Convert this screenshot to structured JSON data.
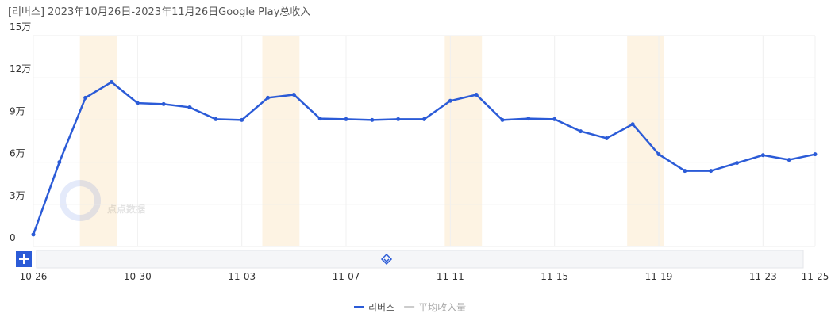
{
  "chart_data": {
    "type": "line",
    "title": "[리버스]  2023年10月26日-2023年11月26日Google Play总收入",
    "watermark": "点点数据",
    "categories": [
      "10-26",
      null,
      null,
      null,
      "10-30",
      null,
      null,
      null,
      "11-03",
      null,
      null,
      null,
      "11-07",
      null,
      null,
      null,
      "11-11",
      null,
      null,
      null,
      "11-15",
      null,
      null,
      null,
      "11-19",
      null,
      null,
      null,
      "11-23",
      null,
      "11-25"
    ],
    "series": [
      {
        "name": "리버스",
        "color": "#2b5bd7",
        "values": [
          8500,
          60000,
          105800,
          117000,
          102000,
          101300,
          99000,
          90600,
          90000,
          105800,
          108000,
          91000,
          90600,
          90000,
          90600,
          90600,
          103600,
          108000,
          90000,
          91000,
          90600,
          82000,
          77000,
          87000,
          65600,
          53800,
          53800,
          59400,
          65000,
          61700,
          65600
        ]
      },
      {
        "name": "平均收入量",
        "color": "#cccccc",
        "hidden": true,
        "values": [
          null,
          null,
          null,
          null,
          null,
          null,
          null,
          null,
          null,
          null,
          null,
          null,
          null,
          null,
          null,
          null,
          null,
          null,
          null,
          null,
          null,
          null,
          null,
          null,
          null,
          null,
          null,
          null,
          null,
          null,
          null
        ]
      }
    ],
    "shaded_ranges": [
      [
        2,
        3
      ],
      [
        9,
        10
      ],
      [
        16,
        17
      ],
      [
        23,
        24
      ]
    ],
    "shade_color": "#fdf3e3",
    "ylim": [
      0,
      150000
    ],
    "yticks": [
      0,
      {
        "value": 30000,
        "label": "3万"
      },
      {
        "value": 60000,
        "label": "6万"
      },
      {
        "value": 90000,
        "label": "9万"
      },
      {
        "value": 120000,
        "label": "12万"
      },
      {
        "value": 150000,
        "label": "15万"
      }
    ],
    "grid": true
  }
}
